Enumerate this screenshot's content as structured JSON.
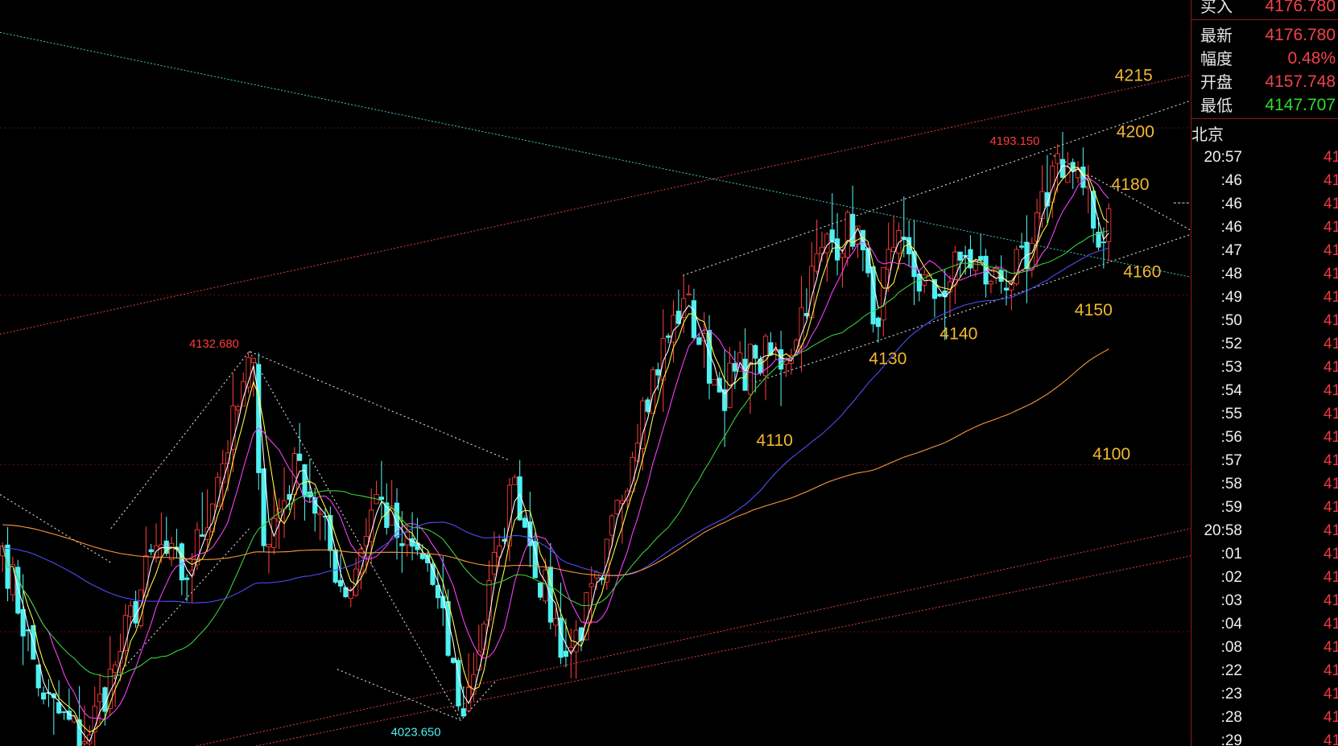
{
  "colors": {
    "up": "#ff3b3b",
    "down": "#4ff0f0",
    "ma": [
      "#ffffff",
      "#ffff40",
      "#ff40ff",
      "#3ad43a",
      "#5050ff",
      "#ff9a3c"
    ],
    "annotation": "#f2b730",
    "high_label": "#ff3b3b",
    "low_label": "#4ff0f0",
    "background": "#000000"
  },
  "chart_data": {
    "type": "candlestick",
    "title": "",
    "close_keypoints": [
      [
        0,
        4075.7
      ],
      [
        8,
        4030.0
      ],
      [
        16,
        4017.3
      ],
      [
        22,
        4040.2
      ],
      [
        30,
        4075.7
      ],
      [
        36,
        4065.6
      ],
      [
        42,
        4096.1
      ],
      [
        49,
        4131.6
      ],
      [
        51,
        4075.7
      ],
      [
        58,
        4101.1
      ],
      [
        67,
        4060.5
      ],
      [
        73,
        4091.0
      ],
      [
        78,
        4075.7
      ],
      [
        83,
        4070.6
      ],
      [
        90,
        4024.9
      ],
      [
        97,
        4075.7
      ],
      [
        100,
        4096.1
      ],
      [
        103,
        4075.7
      ],
      [
        110,
        4042.7
      ],
      [
        117,
        4065.6
      ],
      [
        125,
        4118.9
      ],
      [
        133,
        4149.4
      ],
      [
        140,
        4121.5
      ],
      [
        147,
        4131.6
      ],
      [
        153,
        4131.6
      ],
      [
        160,
        4164.7
      ],
      [
        167,
        4171.0
      ],
      [
        170,
        4141.8
      ],
      [
        174,
        4164.7
      ],
      [
        182,
        4149.4
      ],
      [
        188,
        4162.1
      ],
      [
        193,
        4154.5
      ],
      [
        200,
        4158.3
      ],
      [
        206,
        4192.6
      ],
      [
        211,
        4182.5
      ],
      [
        214,
        4164.7
      ],
      [
        216,
        4176.1
      ]
    ],
    "moving_average_periods": [
      3,
      5,
      10,
      30,
      60,
      120
    ],
    "annotations": {
      "high": "4193.150",
      "mid_high": "4132.680",
      "low": "4023.650"
    },
    "levels": [
      "4215",
      "4200",
      "4180",
      "4160",
      "4150",
      "4140",
      "4130",
      "4110",
      "4100"
    ]
  },
  "panel": {
    "buy": {
      "label": "买入",
      "value": "4176.780"
    },
    "quotes": [
      {
        "label": "最新",
        "value": "4176.780",
        "tone": "red"
      },
      {
        "label": "幅度",
        "value": "0.48%",
        "tone": "red"
      },
      {
        "label": "开盘",
        "value": "4157.748",
        "tone": "red"
      },
      {
        "label": "最低",
        "value": "4147.707",
        "tone": "green"
      }
    ],
    "region": "北京",
    "ticks": [
      {
        "time": "20:57",
        "price": "41"
      },
      {
        "time": ":46",
        "price": "41"
      },
      {
        "time": ":46",
        "price": "41"
      },
      {
        "time": ":46",
        "price": "41"
      },
      {
        "time": ":47",
        "price": "41"
      },
      {
        "time": ":48",
        "price": "41"
      },
      {
        "time": ":49",
        "price": "41"
      },
      {
        "time": ":50",
        "price": "41"
      },
      {
        "time": ":52",
        "price": "41"
      },
      {
        "time": ":53",
        "price": "41"
      },
      {
        "time": ":54",
        "price": "41"
      },
      {
        "time": ":55",
        "price": "41"
      },
      {
        "time": ":56",
        "price": "41"
      },
      {
        "time": ":57",
        "price": "41"
      },
      {
        "time": ":58",
        "price": "41"
      },
      {
        "time": ":59",
        "price": "41"
      },
      {
        "time": "20:58",
        "price": "41"
      },
      {
        "time": ":01",
        "price": "41"
      },
      {
        "time": ":02",
        "price": "41"
      },
      {
        "time": ":03",
        "price": "41"
      },
      {
        "time": ":04",
        "price": "41"
      },
      {
        "time": ":08",
        "price": "41"
      },
      {
        "time": ":22",
        "price": "41"
      },
      {
        "time": ":23",
        "price": "41"
      },
      {
        "time": ":28",
        "price": "41"
      },
      {
        "time": ":29",
        "price": "41"
      }
    ]
  }
}
